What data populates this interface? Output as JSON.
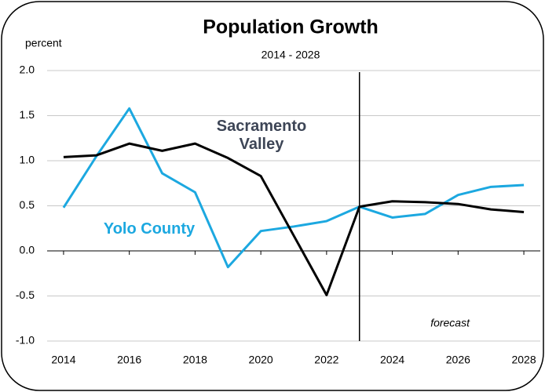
{
  "chart_data": {
    "type": "line",
    "title": "Population Growth",
    "subtitle": "2014 - 2028",
    "y_label": "percent",
    "annotation": "forecast",
    "forecast_x": 2023,
    "x": [
      2014,
      2015,
      2016,
      2017,
      2018,
      2019,
      2020,
      2021,
      2022,
      2023,
      2024,
      2025,
      2026,
      2027,
      2028
    ],
    "series": [
      {
        "name": "Yolo County",
        "color": "#1ca8e0",
        "values": [
          0.48,
          1.05,
          1.58,
          0.86,
          0.65,
          -0.18,
          0.22,
          0.27,
          0.33,
          0.49,
          0.37,
          0.41,
          0.62,
          0.71,
          0.73
        ]
      },
      {
        "name": "Sacramento Valley",
        "color": "#000000",
        "values": [
          1.04,
          1.06,
          1.19,
          1.11,
          1.19,
          1.03,
          0.83,
          0.17,
          -0.49,
          0.49,
          0.55,
          0.54,
          0.52,
          0.46,
          0.43
        ]
      }
    ],
    "xlim": [
      2013.5,
      2028.5
    ],
    "xticks": [
      2014,
      2016,
      2018,
      2020,
      2022,
      2024,
      2026,
      2028
    ],
    "ylim": [
      -1,
      2
    ],
    "yticks": [
      {
        "value": -1,
        "label": "-1.0"
      },
      -0.5,
      {
        "value": 0,
        "label": "0.0"
      },
      0.5,
      {
        "value": 1,
        "label": "1.0"
      },
      1.5,
      {
        "value": 2,
        "label": "2.0"
      }
    ],
    "grid": true
  }
}
